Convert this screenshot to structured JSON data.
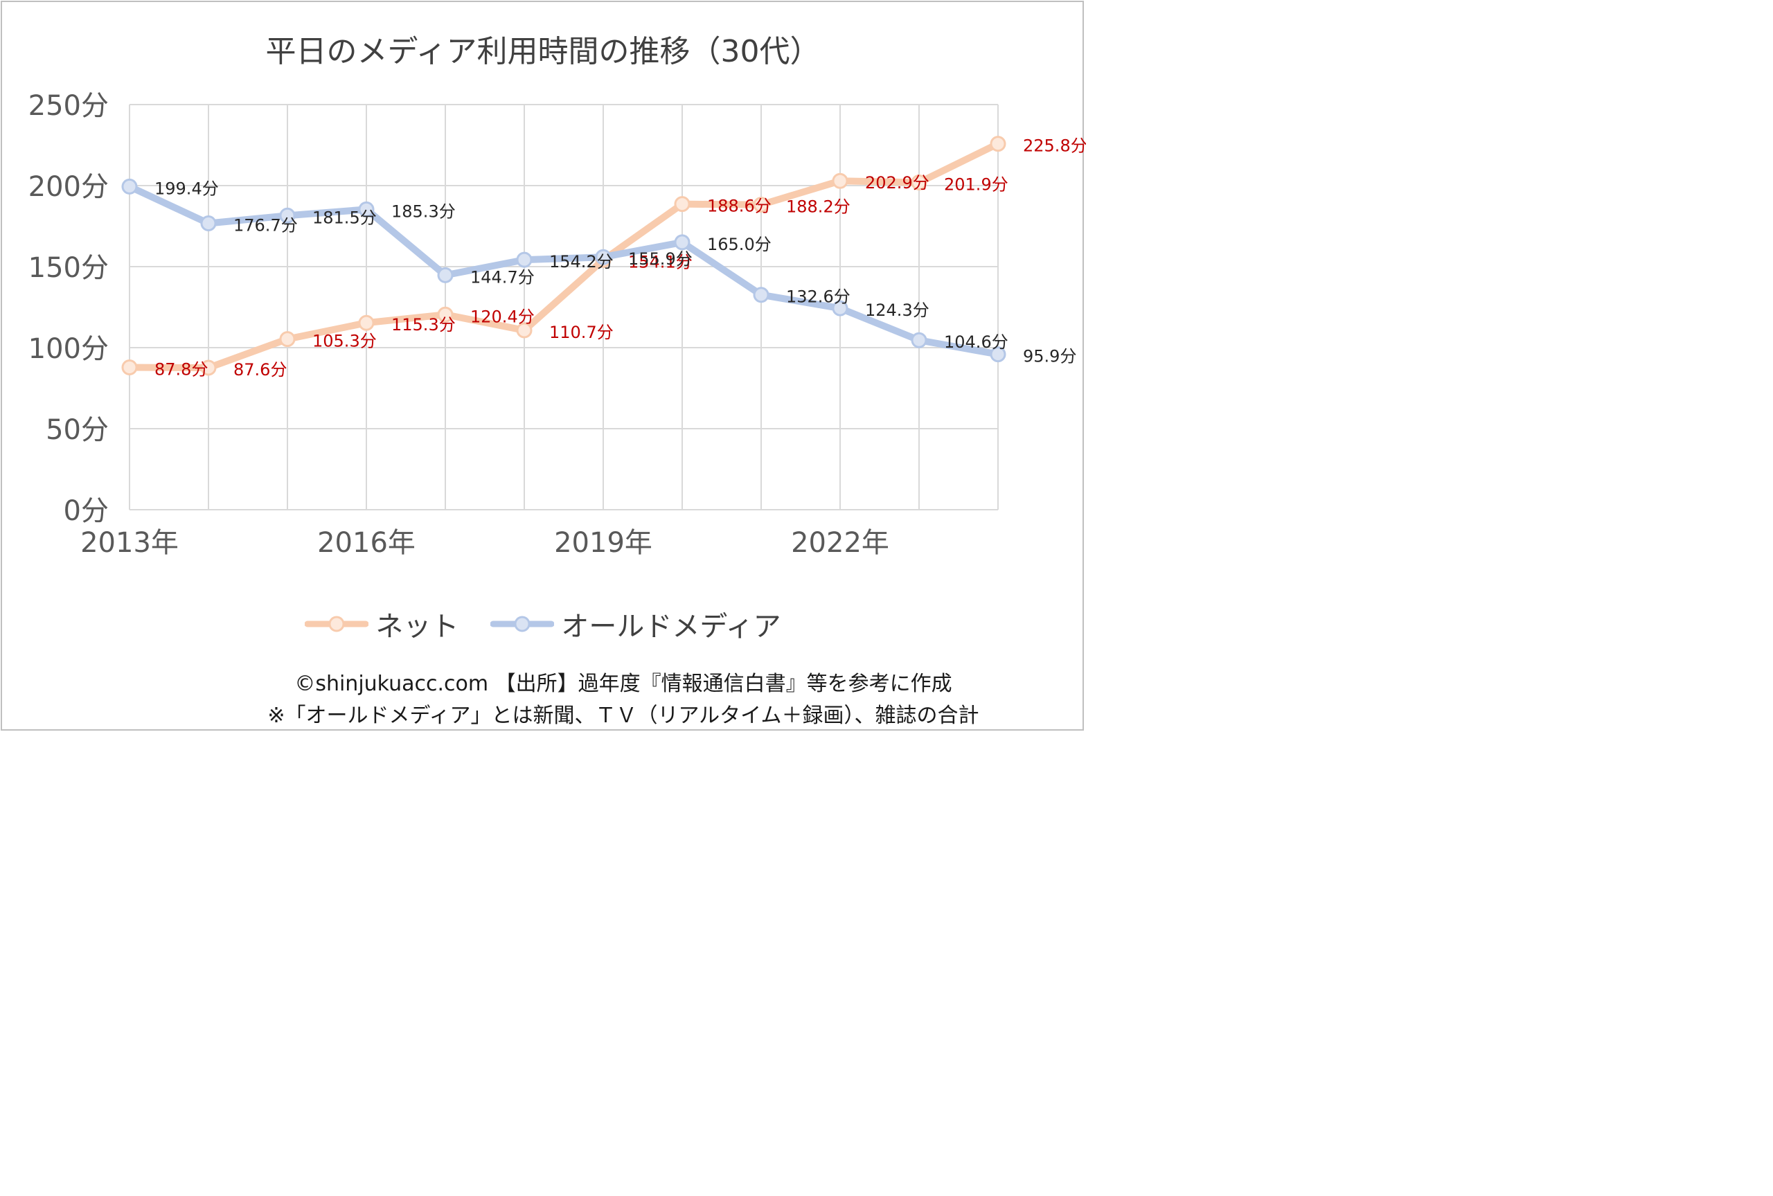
{
  "chart_data": {
    "type": "line",
    "title": "平日のメディア利用時間の推移（30代）",
    "x": [
      2013,
      2014,
      2015,
      2016,
      2017,
      2018,
      2019,
      2020,
      2021,
      2022,
      2023,
      2024
    ],
    "x_tick_labels": [
      "2013年",
      "2016年",
      "2019年",
      "2022年"
    ],
    "y_tick_labels": [
      "0分",
      "50分",
      "100分",
      "150分",
      "200分",
      "250分"
    ],
    "ylim": [
      0,
      250
    ],
    "grid": true,
    "legend_position": "bottom",
    "series": [
      {
        "name": "ネット",
        "color": "#f8cbad",
        "label_color": "#c00000",
        "values": [
          87.8,
          87.6,
          105.3,
          115.3,
          120.4,
          110.7,
          154.1,
          188.6,
          188.2,
          202.9,
          201.9,
          225.8
        ],
        "labels": [
          "87.8分",
          "87.6分",
          "105.3分",
          "115.3分",
          "120.4分",
          "110.7分",
          "154.1分",
          "188.6分",
          "188.2分",
          "202.9分",
          "201.9分",
          "225.8分"
        ]
      },
      {
        "name": "オールドメディア",
        "color": "#b4c7e7",
        "label_color": "#262626",
        "values": [
          199.4,
          176.7,
          181.5,
          185.3,
          144.7,
          154.2,
          155.9,
          165.0,
          132.6,
          124.3,
          104.6,
          95.9
        ],
        "labels": [
          "199.4分",
          "176.7分",
          "181.5分",
          "185.3分",
          "144.7分",
          "154.2分",
          "155.9分",
          "165.0分",
          "132.6分",
          "124.3分",
          "104.6分",
          "95.9分"
        ]
      }
    ]
  },
  "footer": {
    "line1": "©shinjukuacc.com 【出所】過年度『情報通信白書』等を参考に作成",
    "line2": "※「オールドメディア」とは新聞、ＴＶ（リアルタイム＋録画）、雑誌の合計"
  }
}
